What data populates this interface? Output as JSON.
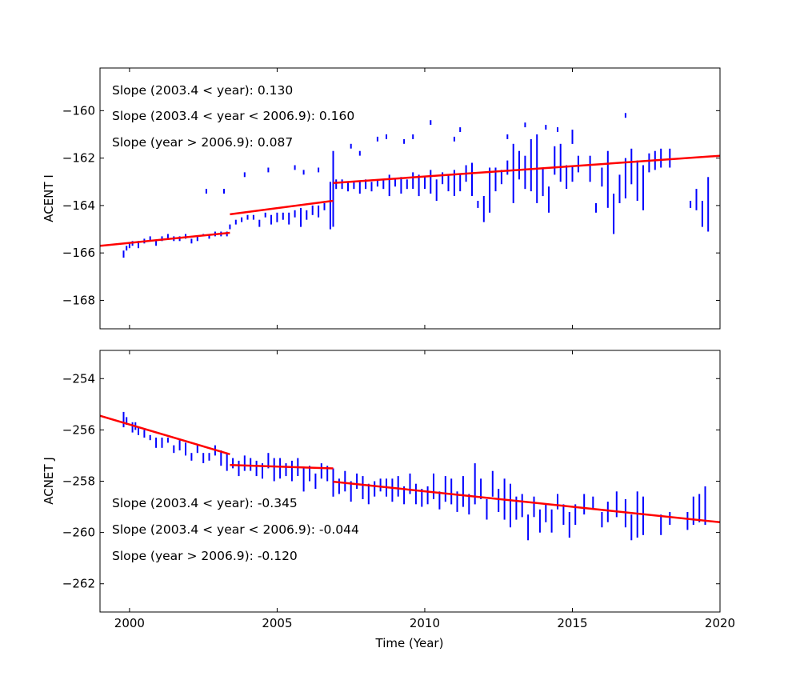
{
  "chart_data": [
    {
      "type": "scatter",
      "panel": "top",
      "title": "",
      "xlabel": "",
      "ylabel": "ACENT I",
      "xlim": [
        1999,
        2020
      ],
      "ylim": [
        -169.2,
        -158.2
      ],
      "xticks": [
        2000,
        2005,
        2010,
        2015,
        2020
      ],
      "xtick_labels_visible": false,
      "yticks": [
        -168,
        -166,
        -164,
        -162,
        -160
      ],
      "ytick_labels": [
        "−168",
        "−166",
        "−164",
        "−162",
        "−160"
      ],
      "grid": false,
      "annotations": [
        "Slope (2003.4 < year):  0.130",
        "Slope (2003.4 <  year < 2006.9): 0.160",
        "Slope (year > 2006.9):  0.087"
      ],
      "colors": {
        "data": "#0000ff",
        "fit": "#ff0000"
      },
      "fit_lines": [
        {
          "x": [
            1999.0,
            2003.4
          ],
          "y": [
            -165.7,
            -165.15
          ]
        },
        {
          "x": [
            2003.4,
            2006.9
          ],
          "y": [
            -164.37,
            -163.8
          ]
        },
        {
          "x": [
            2006.9,
            2020.0
          ],
          "y": [
            -163.05,
            -161.9
          ]
        }
      ],
      "series": [
        {
          "name": "data",
          "x": [
            1999.8,
            1999.9,
            2000.0,
            2000.1,
            2000.3,
            2000.5,
            2000.7,
            2000.9,
            2001.1,
            2001.3,
            2001.5,
            2001.7,
            2001.9,
            2002.1,
            2002.3,
            2002.5,
            2002.7,
            2002.9,
            2003.1,
            2003.3,
            2003.4,
            2003.6,
            2003.8,
            2004.0,
            2004.2,
            2004.4,
            2004.6,
            2004.8,
            2005.0,
            2005.2,
            2005.4,
            2005.6,
            2005.8,
            2006.0,
            2006.2,
            2006.4,
            2006.6,
            2006.8,
            2006.9,
            2007.0,
            2007.2,
            2007.4,
            2007.6,
            2007.8,
            2008.0,
            2008.2,
            2008.4,
            2008.6,
            2008.8,
            2009.0,
            2009.2,
            2009.4,
            2009.6,
            2009.8,
            2010.0,
            2010.2,
            2010.4,
            2010.6,
            2010.8,
            2011.0,
            2011.2,
            2011.4,
            2011.6,
            2011.8,
            2012.0,
            2012.2,
            2012.4,
            2012.6,
            2012.8,
            2013.0,
            2013.2,
            2013.4,
            2013.6,
            2013.8,
            2014.0,
            2014.2,
            2014.4,
            2014.6,
            2014.8,
            2015.0,
            2015.2,
            2015.6,
            2015.8,
            2016.0,
            2016.2,
            2016.4,
            2016.6,
            2016.8,
            2017.0,
            2017.2,
            2017.4,
            2017.6,
            2017.8,
            2018.0,
            2018.3,
            2019.0,
            2019.2,
            2019.4,
            2019.6,
            2002.6,
            2003.2,
            2003.9,
            2004.7,
            2005.6,
            2005.9,
            2006.4,
            2007.5,
            2007.8,
            2008.4,
            2008.7,
            2009.3,
            2009.6,
            2010.2,
            2011.0,
            2011.2,
            2012.8,
            2013.4,
            2014.1,
            2014.5,
            2015.0,
            2016.8
          ],
          "ymin": [
            -166.2,
            -165.9,
            -165.8,
            -165.7,
            -165.8,
            -165.6,
            -165.5,
            -165.7,
            -165.5,
            -165.4,
            -165.5,
            -165.5,
            -165.4,
            -165.6,
            -165.5,
            -165.3,
            -165.4,
            -165.3,
            -165.3,
            -165.3,
            -165.0,
            -164.8,
            -164.7,
            -164.6,
            -164.6,
            -164.9,
            -164.5,
            -164.8,
            -164.7,
            -164.6,
            -164.8,
            -164.5,
            -164.9,
            -164.6,
            -164.4,
            -164.5,
            -164.2,
            -165.0,
            -164.9,
            -163.3,
            -163.3,
            -163.4,
            -163.3,
            -163.5,
            -163.3,
            -163.4,
            -163.2,
            -163.3,
            -163.6,
            -163.2,
            -163.5,
            -163.3,
            -163.3,
            -163.6,
            -163.3,
            -163.5,
            -163.8,
            -163.1,
            -163.4,
            -163.6,
            -163.4,
            -163.0,
            -163.6,
            -164.1,
            -164.7,
            -164.3,
            -163.4,
            -163.1,
            -162.7,
            -163.9,
            -162.9,
            -163.3,
            -163.4,
            -163.9,
            -163.6,
            -164.3,
            -162.7,
            -163.0,
            -163.3,
            -163.0,
            -162.6,
            -163.0,
            -164.3,
            -163.2,
            -164.1,
            -165.2,
            -163.9,
            -163.7,
            -163.1,
            -163.8,
            -164.2,
            -162.6,
            -162.5,
            -162.4,
            -162.4,
            -164.1,
            -164.2,
            -164.9,
            -165.1,
            -163.5,
            -163.5,
            -162.8,
            -162.6,
            -162.5,
            -162.7,
            -162.6,
            -161.6,
            -161.9,
            -161.3,
            -161.2,
            -161.4,
            -161.2,
            -160.6,
            -161.3,
            -160.9,
            -161.2,
            -160.7,
            -160.8,
            -160.9,
            -161.4,
            -160.3
          ],
          "ymax": [
            -165.9,
            -165.7,
            -165.6,
            -165.5,
            -165.5,
            -165.4,
            -165.3,
            -165.5,
            -165.3,
            -165.2,
            -165.3,
            -165.3,
            -165.2,
            -165.4,
            -165.3,
            -165.2,
            -165.2,
            -165.1,
            -165.1,
            -165.1,
            -164.8,
            -164.6,
            -164.5,
            -164.4,
            -164.4,
            -164.6,
            -164.3,
            -164.4,
            -164.3,
            -164.3,
            -164.3,
            -164.2,
            -164.1,
            -164.2,
            -164.0,
            -164.0,
            -163.9,
            -163.0,
            -161.7,
            -162.9,
            -162.9,
            -163.0,
            -163.0,
            -163.0,
            -162.9,
            -163.0,
            -162.9,
            -162.9,
            -162.7,
            -162.9,
            -162.8,
            -162.9,
            -162.6,
            -162.7,
            -162.8,
            -162.5,
            -162.9,
            -162.6,
            -162.7,
            -162.5,
            -162.7,
            -162.3,
            -162.2,
            -163.8,
            -163.6,
            -162.4,
            -162.4,
            -162.5,
            -162.1,
            -161.4,
            -161.7,
            -161.9,
            -161.2,
            -161.0,
            -162.4,
            -163.2,
            -161.5,
            -161.4,
            -162.3,
            -162.3,
            -161.9,
            -161.9,
            -163.9,
            -162.4,
            -161.7,
            -163.5,
            -162.7,
            -162.0,
            -161.6,
            -162.1,
            -162.3,
            -161.8,
            -161.7,
            -161.6,
            -161.6,
            -163.8,
            -163.3,
            -163.8,
            -162.8,
            -163.3,
            -163.3,
            -162.6,
            -162.4,
            -162.3,
            -162.5,
            -162.4,
            -161.4,
            -161.7,
            -161.1,
            -161.0,
            -161.2,
            -161.0,
            -160.4,
            -161.1,
            -160.7,
            -161.0,
            -160.5,
            -160.6,
            -160.7,
            -160.8,
            -160.1
          ]
        }
      ]
    },
    {
      "type": "scatter",
      "panel": "bottom",
      "title": "",
      "xlabel": "Time (Year)",
      "ylabel": "ACNET J",
      "xlim": [
        1999,
        2020
      ],
      "ylim": [
        -263.1,
        -252.9
      ],
      "xticks": [
        2000,
        2005,
        2010,
        2015,
        2020
      ],
      "xtick_labels": [
        "2000",
        "2005",
        "2010",
        "2015",
        "2020"
      ],
      "yticks": [
        -262,
        -260,
        -258,
        -256,
        -254
      ],
      "ytick_labels": [
        "−262",
        "−260",
        "−258",
        "−256",
        "−254"
      ],
      "grid": false,
      "annotations": [
        "Slope (2003.4 < year):  -0.345",
        "Slope (2003.4 <  year < 2006.9): -0.044",
        "Slope (year > 2006.9):  -0.120"
      ],
      "colors": {
        "data": "#0000ff",
        "fit": "#ff0000"
      },
      "fit_lines": [
        {
          "x": [
            1999.0,
            2003.4
          ],
          "y": [
            -255.45,
            -256.95
          ]
        },
        {
          "x": [
            2003.4,
            2006.9
          ],
          "y": [
            -257.37,
            -257.5
          ]
        },
        {
          "x": [
            2006.9,
            2020.0
          ],
          "y": [
            -258.02,
            -259.6
          ]
        }
      ],
      "series": [
        {
          "name": "data",
          "x": [
            1999.8,
            1999.9,
            2000.1,
            2000.2,
            2000.3,
            2000.5,
            2000.7,
            2000.9,
            2001.1,
            2001.3,
            2001.5,
            2001.7,
            2001.9,
            2002.1,
            2002.3,
            2002.5,
            2002.7,
            2002.9,
            2003.1,
            2003.3,
            2003.5,
            2003.7,
            2003.9,
            2004.1,
            2004.3,
            2004.5,
            2004.7,
            2004.9,
            2005.1,
            2005.3,
            2005.5,
            2005.7,
            2005.9,
            2006.1,
            2006.3,
            2006.5,
            2006.7,
            2006.9,
            2007.1,
            2007.3,
            2007.5,
            2007.7,
            2007.9,
            2008.1,
            2008.3,
            2008.5,
            2008.7,
            2008.9,
            2009.1,
            2009.3,
            2009.5,
            2009.7,
            2009.9,
            2010.1,
            2010.3,
            2010.5,
            2010.7,
            2010.9,
            2011.1,
            2011.3,
            2011.5,
            2011.7,
            2011.9,
            2012.1,
            2012.3,
            2012.5,
            2012.7,
            2012.9,
            2013.1,
            2013.3,
            2013.5,
            2013.7,
            2013.9,
            2014.1,
            2014.3,
            2014.5,
            2014.7,
            2014.9,
            2015.1,
            2015.4,
            2015.7,
            2016.0,
            2016.2,
            2016.5,
            2016.8,
            2017.0,
            2017.2,
            2017.4,
            2018.0,
            2018.3,
            2018.9,
            2019.1,
            2019.3,
            2019.5
          ],
          "ymin": [
            -255.9,
            -255.8,
            -256.1,
            -256.0,
            -256.2,
            -256.3,
            -256.4,
            -256.7,
            -256.7,
            -256.5,
            -256.9,
            -256.8,
            -257.0,
            -257.2,
            -256.9,
            -257.3,
            -257.2,
            -257.0,
            -257.4,
            -257.6,
            -257.5,
            -257.8,
            -257.6,
            -257.6,
            -257.8,
            -257.9,
            -257.5,
            -258.0,
            -257.9,
            -257.8,
            -258.0,
            -257.8,
            -258.4,
            -258.0,
            -258.3,
            -257.9,
            -258.0,
            -258.6,
            -258.5,
            -258.4,
            -258.8,
            -258.3,
            -258.7,
            -258.9,
            -258.6,
            -258.4,
            -258.6,
            -258.8,
            -258.6,
            -258.9,
            -258.5,
            -258.9,
            -259.0,
            -258.9,
            -258.7,
            -259.1,
            -258.8,
            -258.9,
            -259.2,
            -259.0,
            -259.3,
            -258.9,
            -258.7,
            -259.5,
            -258.6,
            -259.2,
            -259.5,
            -259.8,
            -259.5,
            -259.4,
            -260.3,
            -259.4,
            -260.0,
            -259.6,
            -260.0,
            -259.1,
            -259.7,
            -260.2,
            -259.7,
            -259.3,
            -259.1,
            -259.8,
            -259.6,
            -259.4,
            -259.8,
            -260.3,
            -260.2,
            -260.1,
            -260.1,
            -259.7,
            -259.9,
            -259.7,
            -259.6,
            -259.7
          ],
          "ymax": [
            -255.3,
            -255.5,
            -255.7,
            -255.7,
            -255.9,
            -256.0,
            -256.2,
            -256.3,
            -256.3,
            -256.3,
            -256.6,
            -256.4,
            -256.5,
            -256.9,
            -256.6,
            -256.9,
            -256.9,
            -256.6,
            -256.8,
            -256.9,
            -257.1,
            -257.2,
            -257.0,
            -257.1,
            -257.2,
            -257.3,
            -256.9,
            -257.1,
            -257.1,
            -257.3,
            -257.2,
            -257.1,
            -257.5,
            -257.4,
            -257.7,
            -257.3,
            -257.4,
            -257.5,
            -257.9,
            -257.6,
            -258.0,
            -257.7,
            -257.8,
            -258.1,
            -258.0,
            -257.9,
            -257.9,
            -257.9,
            -257.8,
            -258.2,
            -257.7,
            -258.1,
            -258.3,
            -258.2,
            -257.7,
            -258.4,
            -257.8,
            -257.9,
            -258.4,
            -257.8,
            -258.5,
            -257.3,
            -257.9,
            -258.7,
            -257.6,
            -258.3,
            -257.9,
            -258.1,
            -258.6,
            -258.5,
            -259.3,
            -258.6,
            -259.1,
            -258.9,
            -259.1,
            -258.5,
            -258.9,
            -259.2,
            -258.9,
            -258.5,
            -258.6,
            -259.2,
            -258.8,
            -258.4,
            -258.7,
            -259.3,
            -258.4,
            -258.6,
            -259.3,
            -259.2,
            -259.2,
            -258.6,
            -258.5,
            -258.2
          ]
        }
      ]
    }
  ]
}
